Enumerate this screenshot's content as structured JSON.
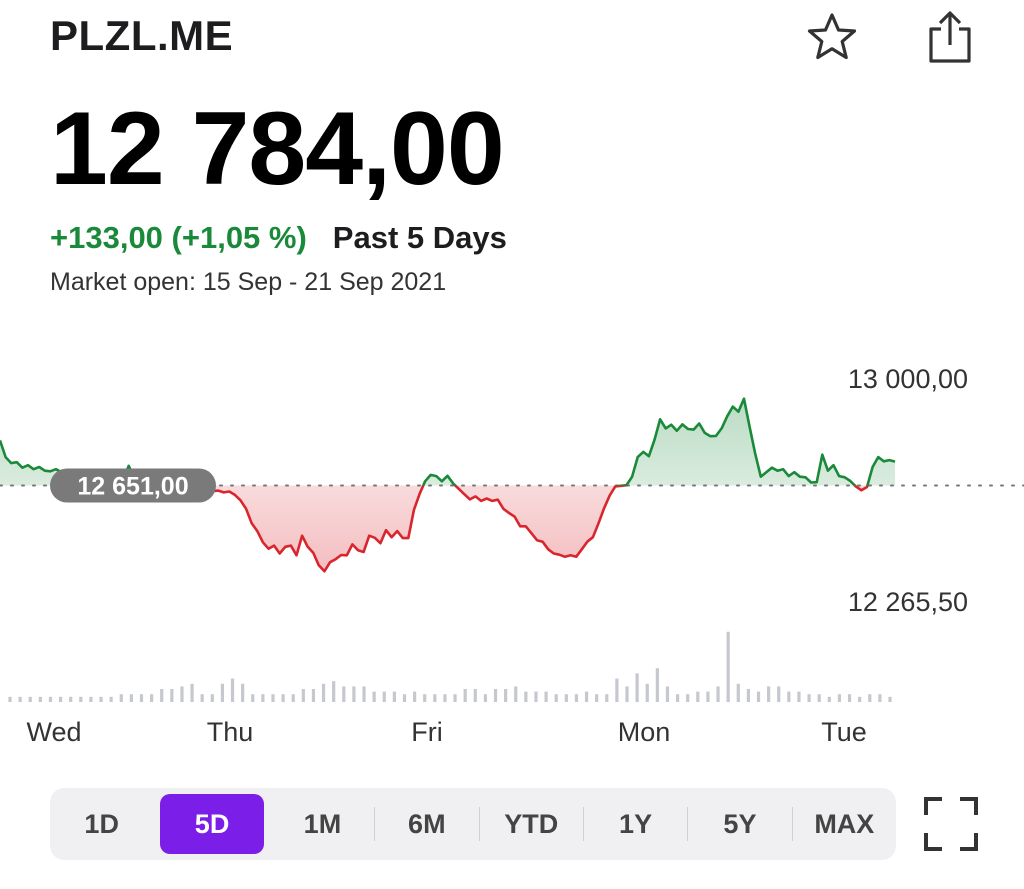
{
  "header": {
    "ticker": "PLZL.ME",
    "star_icon": "star-icon",
    "share_icon": "share-icon"
  },
  "quote": {
    "price": "12 784,00",
    "change": "+133,00 (+1,05 %)",
    "period": "Past 5 Days",
    "market_status": "Market open: 15 Sep - 21 Sep 2021"
  },
  "colors": {
    "positive": "#1a8a3a",
    "negative": "#d9262e",
    "accent": "#7b1fe8",
    "volume": "#c5c8cf"
  },
  "chart_data": {
    "type": "line",
    "baseline": 12651.0,
    "baseline_label": "12 651,00",
    "y_labels": [
      "13 000,00",
      "12 265,50"
    ],
    "ylim": [
      12265.5,
      13000.0
    ],
    "x_labels": [
      "Wed",
      "Thu",
      "Fri",
      "Mon",
      "Tue"
    ],
    "series": [
      {
        "values": [
          12800,
          12745,
          12725,
          12728,
          12710,
          12718,
          12705,
          12712,
          12700,
          12698,
          12705,
          12695,
          12690,
          12698,
          12688,
          12680,
          12683,
          12676,
          12673,
          12670,
          12675,
          12666,
          12670,
          12716,
          12676,
          12666,
          12668,
          12662,
          12659,
          12652,
          12655,
          12645,
          12632,
          12625,
          12640,
          12628,
          12636,
          12628,
          12632,
          12634,
          12628,
          12631,
          12620,
          12602,
          12574,
          12526,
          12500,
          12463,
          12442,
          12452,
          12426,
          12448,
          12452,
          12420,
          12485,
          12448,
          12428,
          12387,
          12367,
          12397,
          12407,
          12421,
          12420,
          12456,
          12437,
          12431,
          12485,
          12478,
          12460,
          12503,
          12480,
          12500,
          12477,
          12477,
          12570,
          12622,
          12665,
          12686,
          12682,
          12665,
          12683,
          12658,
          12640,
          12622,
          12605,
          12615,
          12600,
          12608,
          12600,
          12604,
          12574,
          12560,
          12548,
          12516,
          12516,
          12493,
          12470,
          12465,
          12440,
          12426,
          12422,
          12415,
          12420,
          12415,
          12440,
          12465,
          12480,
          12526,
          12576,
          12618,
          12648,
          12650,
          12652,
          12680,
          12745,
          12762,
          12748,
          12802,
          12870,
          12840,
          12852,
          12832,
          12853,
          12838,
          12836,
          12856,
          12825,
          12814,
          12815,
          12840,
          12880,
          12912,
          12895,
          12938,
          12845,
          12756,
          12680,
          12695,
          12710,
          12700,
          12705,
          12682,
          12695,
          12680,
          12678,
          12661,
          12662,
          12753,
          12700,
          12718,
          12682,
          12678,
          12666,
          12648,
          12635,
          12646,
          12712,
          12745,
          12731,
          12735,
          12730
        ]
      }
    ],
    "volume": [
      2,
      2,
      2,
      2,
      2,
      2,
      2,
      2,
      2,
      2,
      2,
      3,
      3,
      3,
      3,
      5,
      5,
      6,
      7,
      3,
      3,
      7,
      9,
      7,
      3,
      3,
      3,
      3,
      3,
      5,
      5,
      7,
      8,
      6,
      6,
      6,
      4,
      4,
      4,
      3,
      4,
      3,
      3,
      3,
      3,
      5,
      5,
      3,
      5,
      5,
      6,
      4,
      4,
      4,
      3,
      3,
      3,
      4,
      3,
      3,
      9,
      6,
      11,
      7,
      13,
      6,
      3,
      3,
      4,
      4,
      6,
      27,
      7,
      5,
      4,
      6,
      6,
      4,
      4,
      3,
      3,
      2,
      3,
      3,
      2,
      3,
      3,
      2
    ]
  },
  "ranges": [
    {
      "label": "1D",
      "active": false
    },
    {
      "label": "5D",
      "active": true
    },
    {
      "label": "1M",
      "active": false
    },
    {
      "label": "6M",
      "active": false
    },
    {
      "label": "YTD",
      "active": false
    },
    {
      "label": "1Y",
      "active": false
    },
    {
      "label": "5Y",
      "active": false
    },
    {
      "label": "MAX",
      "active": false
    }
  ],
  "fullscreen_icon": "fullscreen-icon"
}
